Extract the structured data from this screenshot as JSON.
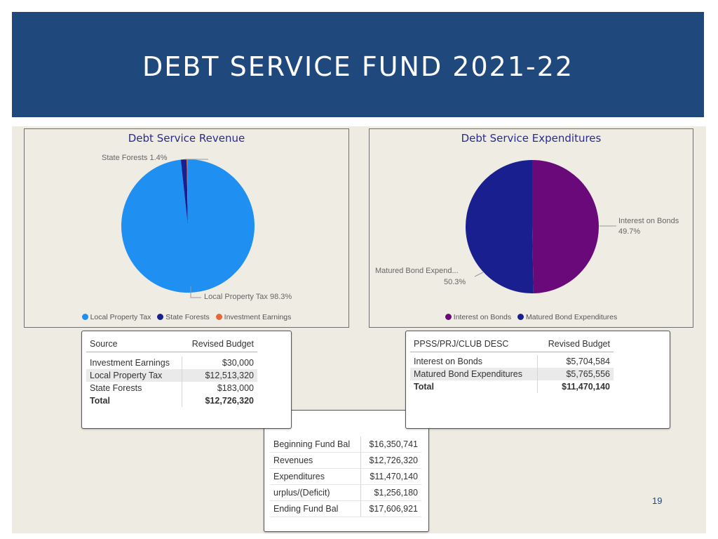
{
  "slide": {
    "title": "DEBT SERVICE FUND 2021-22",
    "page_number": "19",
    "banner_color": "#1f497d"
  },
  "chart_data": [
    {
      "type": "pie",
      "title": "Debt Service Revenue",
      "slices": [
        {
          "name": "Local Property Tax",
          "value": 98.3,
          "color": "#1f8ff2"
        },
        {
          "name": "State Forests",
          "value": 1.4,
          "color": "#1a1f8f"
        },
        {
          "name": "Investment Earnings",
          "value": 0.3,
          "color": "#e5683a"
        }
      ],
      "data_labels": {
        "state_forests": "State Forests 1.4%",
        "local_property_tax": "Local Property Tax 98.3%"
      },
      "legend": [
        "Local Property Tax",
        "State Forests",
        "Investment Earnings"
      ],
      "legend_position": "bottom"
    },
    {
      "type": "pie",
      "title": "Debt Service Expenditures",
      "slices": [
        {
          "name": "Interest on Bonds",
          "value": 49.7,
          "color": "#6a0a7a"
        },
        {
          "name": "Matured Bond Expenditures",
          "value": 50.3,
          "color": "#1a1f8f"
        }
      ],
      "data_labels": {
        "interest_name": "Interest on Bonds",
        "interest_pct": "49.7%",
        "matured_name": "Matured Bond Expend...",
        "matured_pct": "50.3%"
      },
      "legend": [
        "Interest on Bonds",
        "Matured Bond Expenditures"
      ],
      "legend_position": "bottom"
    }
  ],
  "revenue_table": {
    "headers": [
      "Source",
      "Revised Budget"
    ],
    "rows": [
      [
        "Investment Earnings",
        "$30,000"
      ],
      [
        "Local Property Tax",
        "$12,513,320"
      ],
      [
        "State Forests",
        "$183,000"
      ]
    ],
    "total": [
      "Total",
      "$12,726,320"
    ]
  },
  "expenditure_table": {
    "headers": [
      "PPSS/PRJ/CLUB DESC",
      "Revised Budget"
    ],
    "rows": [
      [
        "Interest on Bonds",
        "$5,704,584"
      ],
      [
        "Matured Bond Expenditures",
        "$5,765,556"
      ]
    ],
    "total": [
      "Total",
      "$11,470,140"
    ]
  },
  "fund_balance_table": {
    "rows": [
      [
        "Beginning Fund Bal",
        "$16,350,741"
      ],
      [
        "Revenues",
        "$12,726,320"
      ],
      [
        "Expenditures",
        "$11,470,140"
      ],
      [
        "urplus/(Deficit)",
        "$1,256,180"
      ],
      [
        "Ending Fund Bal",
        "$17,606,921"
      ]
    ]
  }
}
